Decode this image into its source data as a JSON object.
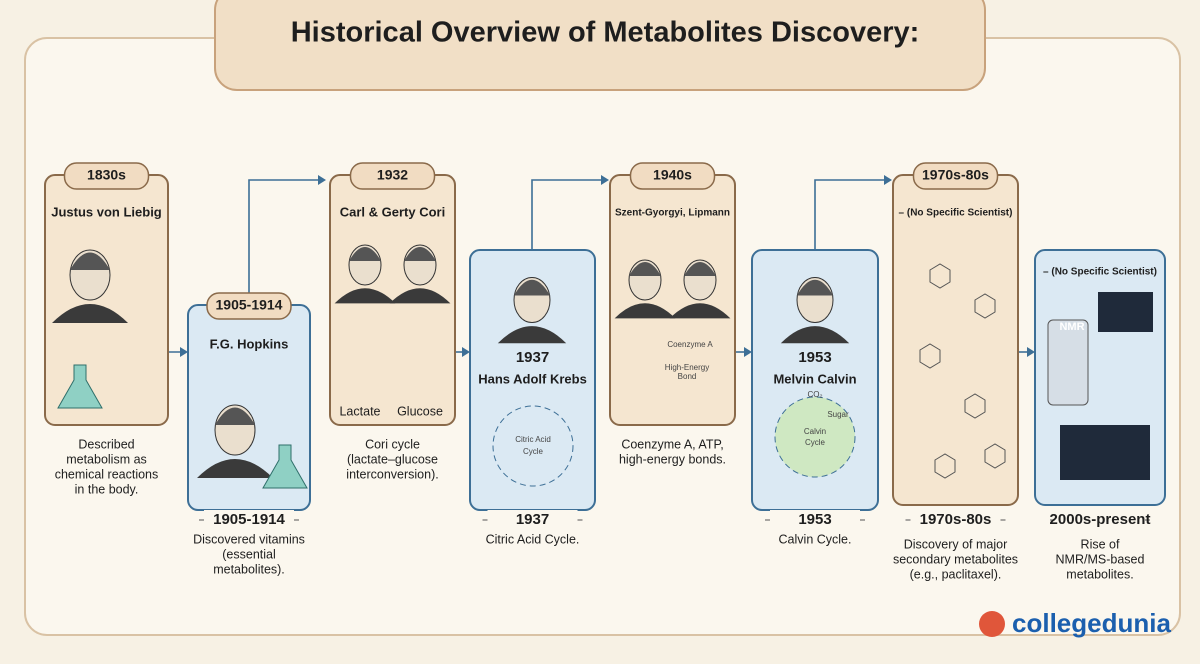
{
  "title": "Historical Overview of Metabolites Discovery:",
  "milestones": [
    {
      "period": "1830s",
      "scientist": "Justus von Liebig",
      "caption": [
        "Described",
        "metabolism as",
        "chemical reactions",
        "in the body."
      ]
    },
    {
      "period": "1905-1914",
      "scientist": "F.G. Hopkins",
      "footer_period": "1905-1914",
      "caption": [
        "Discovered vitamins",
        "(essential",
        "metabolites)."
      ]
    },
    {
      "period": "1932",
      "scientist": "Carl & Gerty Cori",
      "labels": [
        "Lactate",
        "Glucose"
      ],
      "caption": [
        "Cori cycle",
        "(lactate–glucose",
        "interconversion)."
      ]
    },
    {
      "period": "1937",
      "scientist": "Hans Adolf Krebs",
      "labels": [
        "Citric Acid",
        "Cycle"
      ],
      "footer_period": "1937",
      "caption": [
        "Citric Acid Cycle."
      ]
    },
    {
      "period": "1940s",
      "scientist": "Szent-Gyorgyi, Lipmann",
      "labels": [
        "Coenzyme A",
        "High-Energy",
        "Bond"
      ],
      "caption": [
        "Coenzyme A, ATP,",
        "high-energy bonds."
      ]
    },
    {
      "period": "1953",
      "scientist": "Melvin Calvin",
      "labels": [
        "Calvin",
        "Cycle",
        "Sugar",
        "CO₂"
      ],
      "footer_period": "1953",
      "caption": [
        "Calvin Cycle."
      ]
    },
    {
      "period": "1970s-80s",
      "scientist": "– (No Specific Scientist)",
      "footer_period": "1970s-80s",
      "caption": [
        "Discovery of major",
        "secondary metabolites",
        "(e.g., paclitaxel)."
      ]
    },
    {
      "scientist": "– (No Specific Scientist)",
      "labels": [
        "NMR"
      ],
      "footer_period": "2000s-present",
      "caption": [
        "Rise of",
        "NMR/MS-based",
        "metabolites."
      ]
    }
  ],
  "logo": "collegedunia"
}
